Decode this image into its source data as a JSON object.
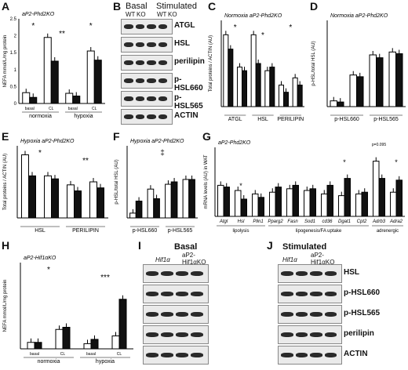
{
  "panels": {
    "A": {
      "label": "A",
      "title": "aP2-Phd2KO",
      "ylabel": "NEFA mmol/L/mg protein",
      "groups": [
        "normoxia",
        "hypoxia"
      ],
      "sub": [
        "basal",
        "CL"
      ],
      "sig": [
        "*",
        "**",
        "*"
      ],
      "yticks": [
        "0",
        "0.5",
        "1",
        "1.5",
        "2",
        "2.5"
      ]
    },
    "B": {
      "label": "B",
      "headers": [
        "Basal",
        "Stimulated"
      ],
      "genotypes": [
        "WT",
        "KO",
        "WT",
        "KO"
      ],
      "rows": [
        "ATGL",
        "HSL",
        "perilipin",
        "p-HSL660",
        "p-HSL565",
        "ACTIN"
      ]
    },
    "C": {
      "label": "C",
      "title": "Normoxia aP2-Phd2KO",
      "ylabel": "Total proteins / ACTIN (AU)",
      "groups": [
        "ATGL",
        "HSL",
        "PERILIPIN"
      ],
      "sub": [
        "basal",
        "CL"
      ],
      "sig": [
        "*",
        "*",
        "*"
      ]
    },
    "D": {
      "label": "D",
      "title": "Normoxia aP2-Phd2KO",
      "ylabel": "p-HSL/total HSL (AU)",
      "groups": [
        "p-HSL660",
        "p-HSL565"
      ],
      "sub": [
        "basal",
        "CL"
      ]
    },
    "E": {
      "label": "E",
      "title": "Hypoxia aP2-Phd2KO",
      "ylabel": "Total proteins / ACTIN (AU)",
      "groups": [
        "HSL",
        "PERILIPIN"
      ],
      "sub": [
        "basal",
        "CL"
      ],
      "sig": [
        "*",
        "**"
      ]
    },
    "F": {
      "label": "F",
      "title": "Hypoxia aP2-Phd2KO",
      "ylabel": "p-HSL/total HSL (AU)",
      "groups": [
        "p-HSL660",
        "p-HSL565"
      ],
      "sub": [
        "basal",
        "CL"
      ],
      "sig": [
        "‡"
      ]
    },
    "G": {
      "label": "G",
      "title": "aP2-Phd2KO",
      "ylabel": "mRNA levels (AU) in WAT",
      "genes": [
        "Atgl",
        "Hsl",
        "Plin1",
        "Pparg2",
        "Fasn",
        "Sod1",
        "cd36",
        "Dgat1",
        "Cpt2",
        "Adrb3",
        "Adra2"
      ],
      "categories": [
        "lipolysis",
        "lipogenesis/FA uptake",
        "adrenergic"
      ],
      "pval": "p=0.095",
      "sig": [
        "*",
        "*",
        "*"
      ]
    },
    "H": {
      "label": "H",
      "title": "aP2-Hif1αKO",
      "ylabel": "NEFA mmol/L/mg protein",
      "groups": [
        "normoxia",
        "hypoxia"
      ],
      "sub": [
        "basal",
        "CL"
      ],
      "sig": [
        "*",
        "***"
      ]
    },
    "I": {
      "label": "I",
      "header": "Basal",
      "genotypes": [
        "Hif1α",
        "aP2-Hif1αKO"
      ]
    },
    "J": {
      "label": "J",
      "header": "Stimulated",
      "genotypes": [
        "Hif1α",
        "aP2-Hif1αKO"
      ],
      "rows": [
        "HSL",
        "p-HSL660",
        "p-HSL565",
        "perilipin",
        "ACTIN"
      ]
    }
  },
  "chart_data": [
    {
      "type": "bar",
      "panel": "A",
      "categories": [
        "normoxia basal",
        "normoxia CL",
        "hypoxia basal",
        "hypoxia CL"
      ],
      "series": [
        {
          "name": "WT",
          "values": [
            0.32,
            1.95,
            0.3,
            1.55
          ]
        },
        {
          "name": "KO",
          "values": [
            0.18,
            1.25,
            0.22,
            1.28
          ]
        }
      ],
      "ylim": [
        0,
        2.5
      ]
    },
    {
      "type": "bar",
      "panel": "C",
      "categories": [
        "ATGL basal",
        "ATGL CL",
        "HSL basal",
        "HSL CL",
        "PERILIPIN basal",
        "PERILIPIN CL"
      ],
      "series": [
        {
          "name": "WT",
          "values": [
            1.0,
            0.55,
            1.0,
            0.5,
            0.3,
            0.4
          ]
        },
        {
          "name": "KO",
          "values": [
            0.8,
            0.5,
            0.6,
            0.55,
            0.2,
            0.3
          ]
        }
      ],
      "ylim": [
        0,
        1.2
      ]
    },
    {
      "type": "bar",
      "panel": "D",
      "categories": [
        "p-HSL660 basal",
        "p-HSL660 CL",
        "p-HSL565 basal",
        "p-HSL565 CL"
      ],
      "series": [
        {
          "name": "WT",
          "values": [
            0.1,
            0.55,
            0.9,
            0.95
          ]
        },
        {
          "name": "KO",
          "values": [
            0.08,
            0.52,
            0.85,
            0.92
          ]
        }
      ],
      "ylim": [
        0,
        1.5
      ]
    },
    {
      "type": "bar",
      "panel": "E",
      "categories": [
        "HSL basal",
        "HSL CL",
        "PERILIPIN basal",
        "PERILIPIN CL"
      ],
      "series": [
        {
          "name": "WT",
          "values": [
            1.05,
            0.7,
            0.55,
            0.6
          ]
        },
        {
          "name": "KO",
          "values": [
            0.7,
            0.65,
            0.45,
            0.5
          ]
        }
      ],
      "ylim": [
        0,
        1.2
      ]
    },
    {
      "type": "bar",
      "panel": "F",
      "categories": [
        "p-HSL660 basal",
        "p-HSL660 CL",
        "p-HSL565 basal",
        "p-HSL565 CL"
      ],
      "series": [
        {
          "name": "WT",
          "values": [
            0.1,
            0.6,
            0.7,
            0.8
          ]
        },
        {
          "name": "KO",
          "values": [
            0.35,
            0.4,
            0.75,
            0.8
          ]
        }
      ],
      "ylim": [
        0,
        1.5
      ]
    },
    {
      "type": "bar",
      "panel": "G",
      "categories": [
        "Atgl",
        "Hsl",
        "Plin1",
        "Pparg2",
        "Fasn",
        "Sod1",
        "cd36",
        "Dgat1",
        "Cpt2",
        "Adrb3",
        "Adra2"
      ],
      "series": [
        {
          "name": "WT",
          "values": [
            0.9,
            0.75,
            0.65,
            0.7,
            0.8,
            0.75,
            0.65,
            0.6,
            0.65,
            1.6,
            0.7
          ]
        },
        {
          "name": "KO",
          "values": [
            0.85,
            0.5,
            0.55,
            0.85,
            0.9,
            0.8,
            0.9,
            1.1,
            0.7,
            1.1,
            1.05
          ]
        }
      ],
      "ylim": [
        0,
        2.0
      ]
    },
    {
      "type": "bar",
      "panel": "H",
      "categories": [
        "normoxia basal",
        "normoxia CL",
        "hypoxia basal",
        "hypoxia CL"
      ],
      "series": [
        {
          "name": "WT",
          "values": [
            0.15,
            0.45,
            0.12,
            0.3
          ]
        },
        {
          "name": "KO",
          "values": [
            0.15,
            0.5,
            0.22,
            1.15
          ]
        }
      ],
      "ylim": [
        0,
        2.0
      ]
    }
  ]
}
